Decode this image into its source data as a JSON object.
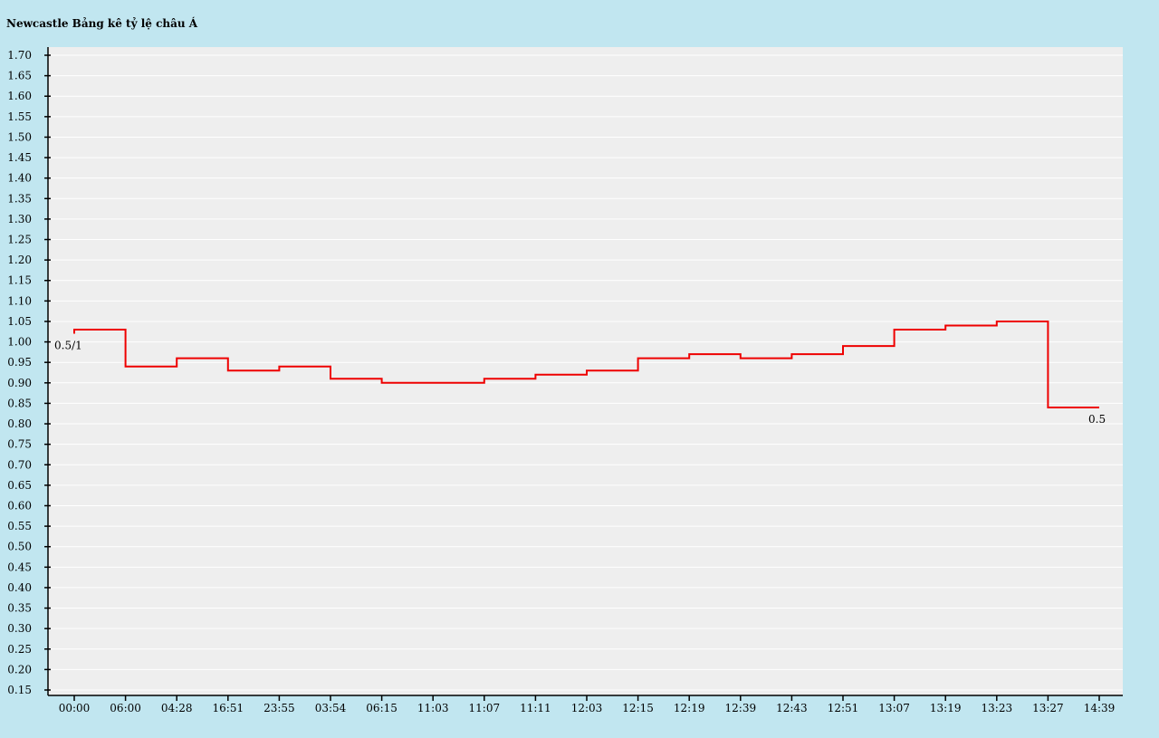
{
  "chart_data": {
    "type": "line",
    "step": "after",
    "title": "Newcastle Bảng kê tỷ lệ châu Á",
    "xlabel": "",
    "ylabel": "",
    "categories": [
      "00:00",
      "06:00",
      "04:28",
      "16:51",
      "23:55",
      "03:54",
      "06:15",
      "11:03",
      "11:07",
      "11:11",
      "12:03",
      "12:15",
      "12:19",
      "12:39",
      "12:43",
      "12:51",
      "13:07",
      "13:19",
      "13:23",
      "13:27",
      "14:39"
    ],
    "series": [
      {
        "values": [
          1.03,
          0.94,
          0.96,
          0.93,
          0.94,
          0.91,
          0.9,
          0.9,
          0.91,
          0.92,
          0.93,
          0.96,
          0.97,
          0.96,
          0.97,
          0.99,
          1.03,
          1.04,
          1.05,
          0.84,
          0.84
        ],
        "color": "#ee0000"
      }
    ],
    "ylim": [
      0.15,
      1.7
    ],
    "yticks": [
      "1.70",
      "1.65",
      "1.60",
      "1.55",
      "1.50",
      "1.45",
      "1.40",
      "1.35",
      "1.30",
      "1.25",
      "1.20",
      "1.15",
      "1.10",
      "1.05",
      "1.00",
      "0.95",
      "0.90",
      "0.85",
      "0.80",
      "0.75",
      "0.70",
      "0.65",
      "0.60",
      "0.55",
      "0.50",
      "0.45",
      "0.40",
      "0.35",
      "0.30",
      "0.25",
      "0.20",
      "0.15"
    ],
    "grid": true,
    "annotations": [
      {
        "text": "0.5/1",
        "index": 0,
        "y": 1.0
      },
      {
        "text": "0.5",
        "index": 20,
        "y": 0.82
      }
    ],
    "plot_background": "#eeeeee",
    "page_background": "#c1e6f0",
    "grid_color": "#ffffff"
  }
}
